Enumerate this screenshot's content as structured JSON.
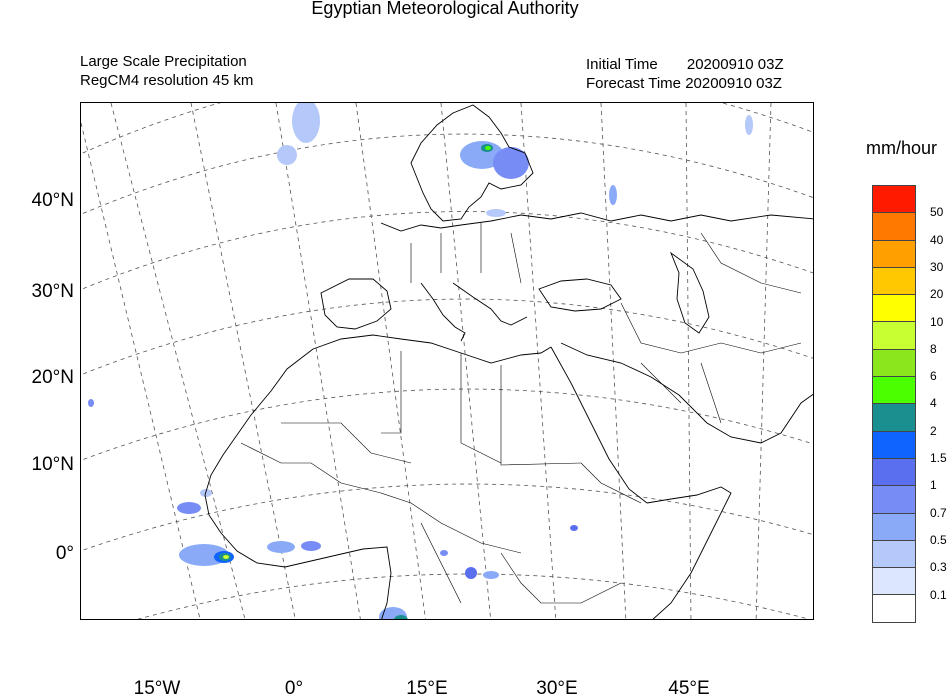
{
  "title": "Egyptian Meteorological Authority",
  "header": {
    "left_line1": "Large Scale Precipitation",
    "left_line2": "RegCM4   resolution 45 km",
    "right_line1": "Initial Time       20200910 03Z",
    "right_line2": "Forecast Time 20200910 03Z"
  },
  "map": {
    "lat_labels": [
      "40°N",
      "30°N",
      "20°N",
      "10°N",
      "0°"
    ],
    "lon_labels": [
      "15°W",
      "0°",
      "15°E",
      "30°E",
      "45°E"
    ]
  },
  "legend": {
    "units": "mm/hour",
    "levels": [
      "50",
      "40",
      "30",
      "20",
      "10",
      "8",
      "6",
      "4",
      "2",
      "1.5",
      "1",
      "0.7",
      "0.5",
      "0.3",
      "0.1"
    ],
    "colors": [
      "#ff1a00",
      "#ff7800",
      "#ff9f00",
      "#ffc800",
      "#ffff00",
      "#c8ff32",
      "#8ce61e",
      "#4bff00",
      "#1a8f8f",
      "#0f64ff",
      "#5a6ef0",
      "#788cf5",
      "#8aaaf8",
      "#b4c8fa",
      "#dce6ff",
      "#ffffff"
    ]
  },
  "colors": {
    "frame": "#000000",
    "coast": "#000000",
    "grid": "#555555",
    "background": "#ffffff"
  }
}
